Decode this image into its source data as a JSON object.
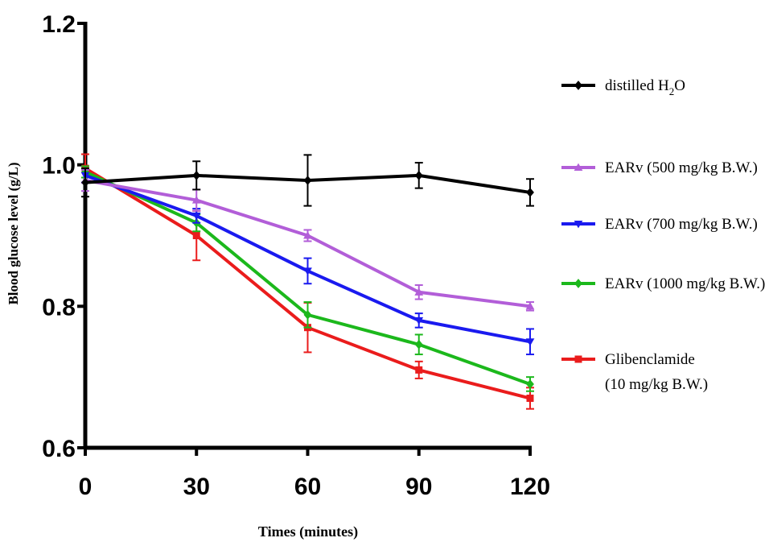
{
  "chart_data": {
    "type": "line",
    "xlabel": "Times (minutes)",
    "ylabel": "Blood glucose level (g/L)",
    "x": [
      0,
      30,
      60,
      90,
      120
    ],
    "xticks": [
      "0",
      "30",
      "60",
      "90",
      "120"
    ],
    "xlim": [
      0,
      120
    ],
    "ylim": [
      0.6,
      1.2
    ],
    "yticks": [
      "0.6",
      "0.8",
      "1.0",
      "1.2"
    ],
    "grid": false,
    "legend_position": "right",
    "series": [
      {
        "name": "distilled H2O",
        "legend_main": "distilled H",
        "legend_sub": "2",
        "legend_tail": "O",
        "color": "#000000",
        "marker": "diamond",
        "values": [
          0.975,
          0.985,
          0.978,
          0.985,
          0.961
        ],
        "errors": [
          0.02,
          0.02,
          0.036,
          0.018,
          0.019
        ]
      },
      {
        "name": "EARv (500 mg/kg B.W.)",
        "color": "#b25ed8",
        "marker": "triangle-up",
        "values": [
          0.978,
          0.95,
          0.9,
          0.82,
          0.8
        ],
        "errors": [
          0.015,
          0.015,
          0.008,
          0.01,
          0.006
        ]
      },
      {
        "name": "EARv (700 mg/kg B.W.)",
        "color": "#1a1aef",
        "marker": "triangle-down",
        "values": [
          0.985,
          0.928,
          0.85,
          0.78,
          0.75
        ],
        "errors": [
          0.01,
          0.01,
          0.018,
          0.01,
          0.018
        ]
      },
      {
        "name": "EARv (1000 mg/kg B.W.)",
        "color": "#1cb81c",
        "marker": "diamond",
        "values": [
          0.99,
          0.918,
          0.788,
          0.746,
          0.69
        ],
        "errors": [
          0.008,
          0.012,
          0.018,
          0.014,
          0.01
        ]
      },
      {
        "name": "Glibenclamide (10 mg/kg B.W.)",
        "legend_lines": [
          "Glibenclamide",
          "(10 mg/kg B.W.)"
        ],
        "color": "#ea1c1c",
        "marker": "square",
        "values": [
          0.995,
          0.9,
          0.77,
          0.71,
          0.67
        ],
        "errors": [
          0.02,
          0.035,
          0.035,
          0.012,
          0.015
        ]
      }
    ]
  }
}
